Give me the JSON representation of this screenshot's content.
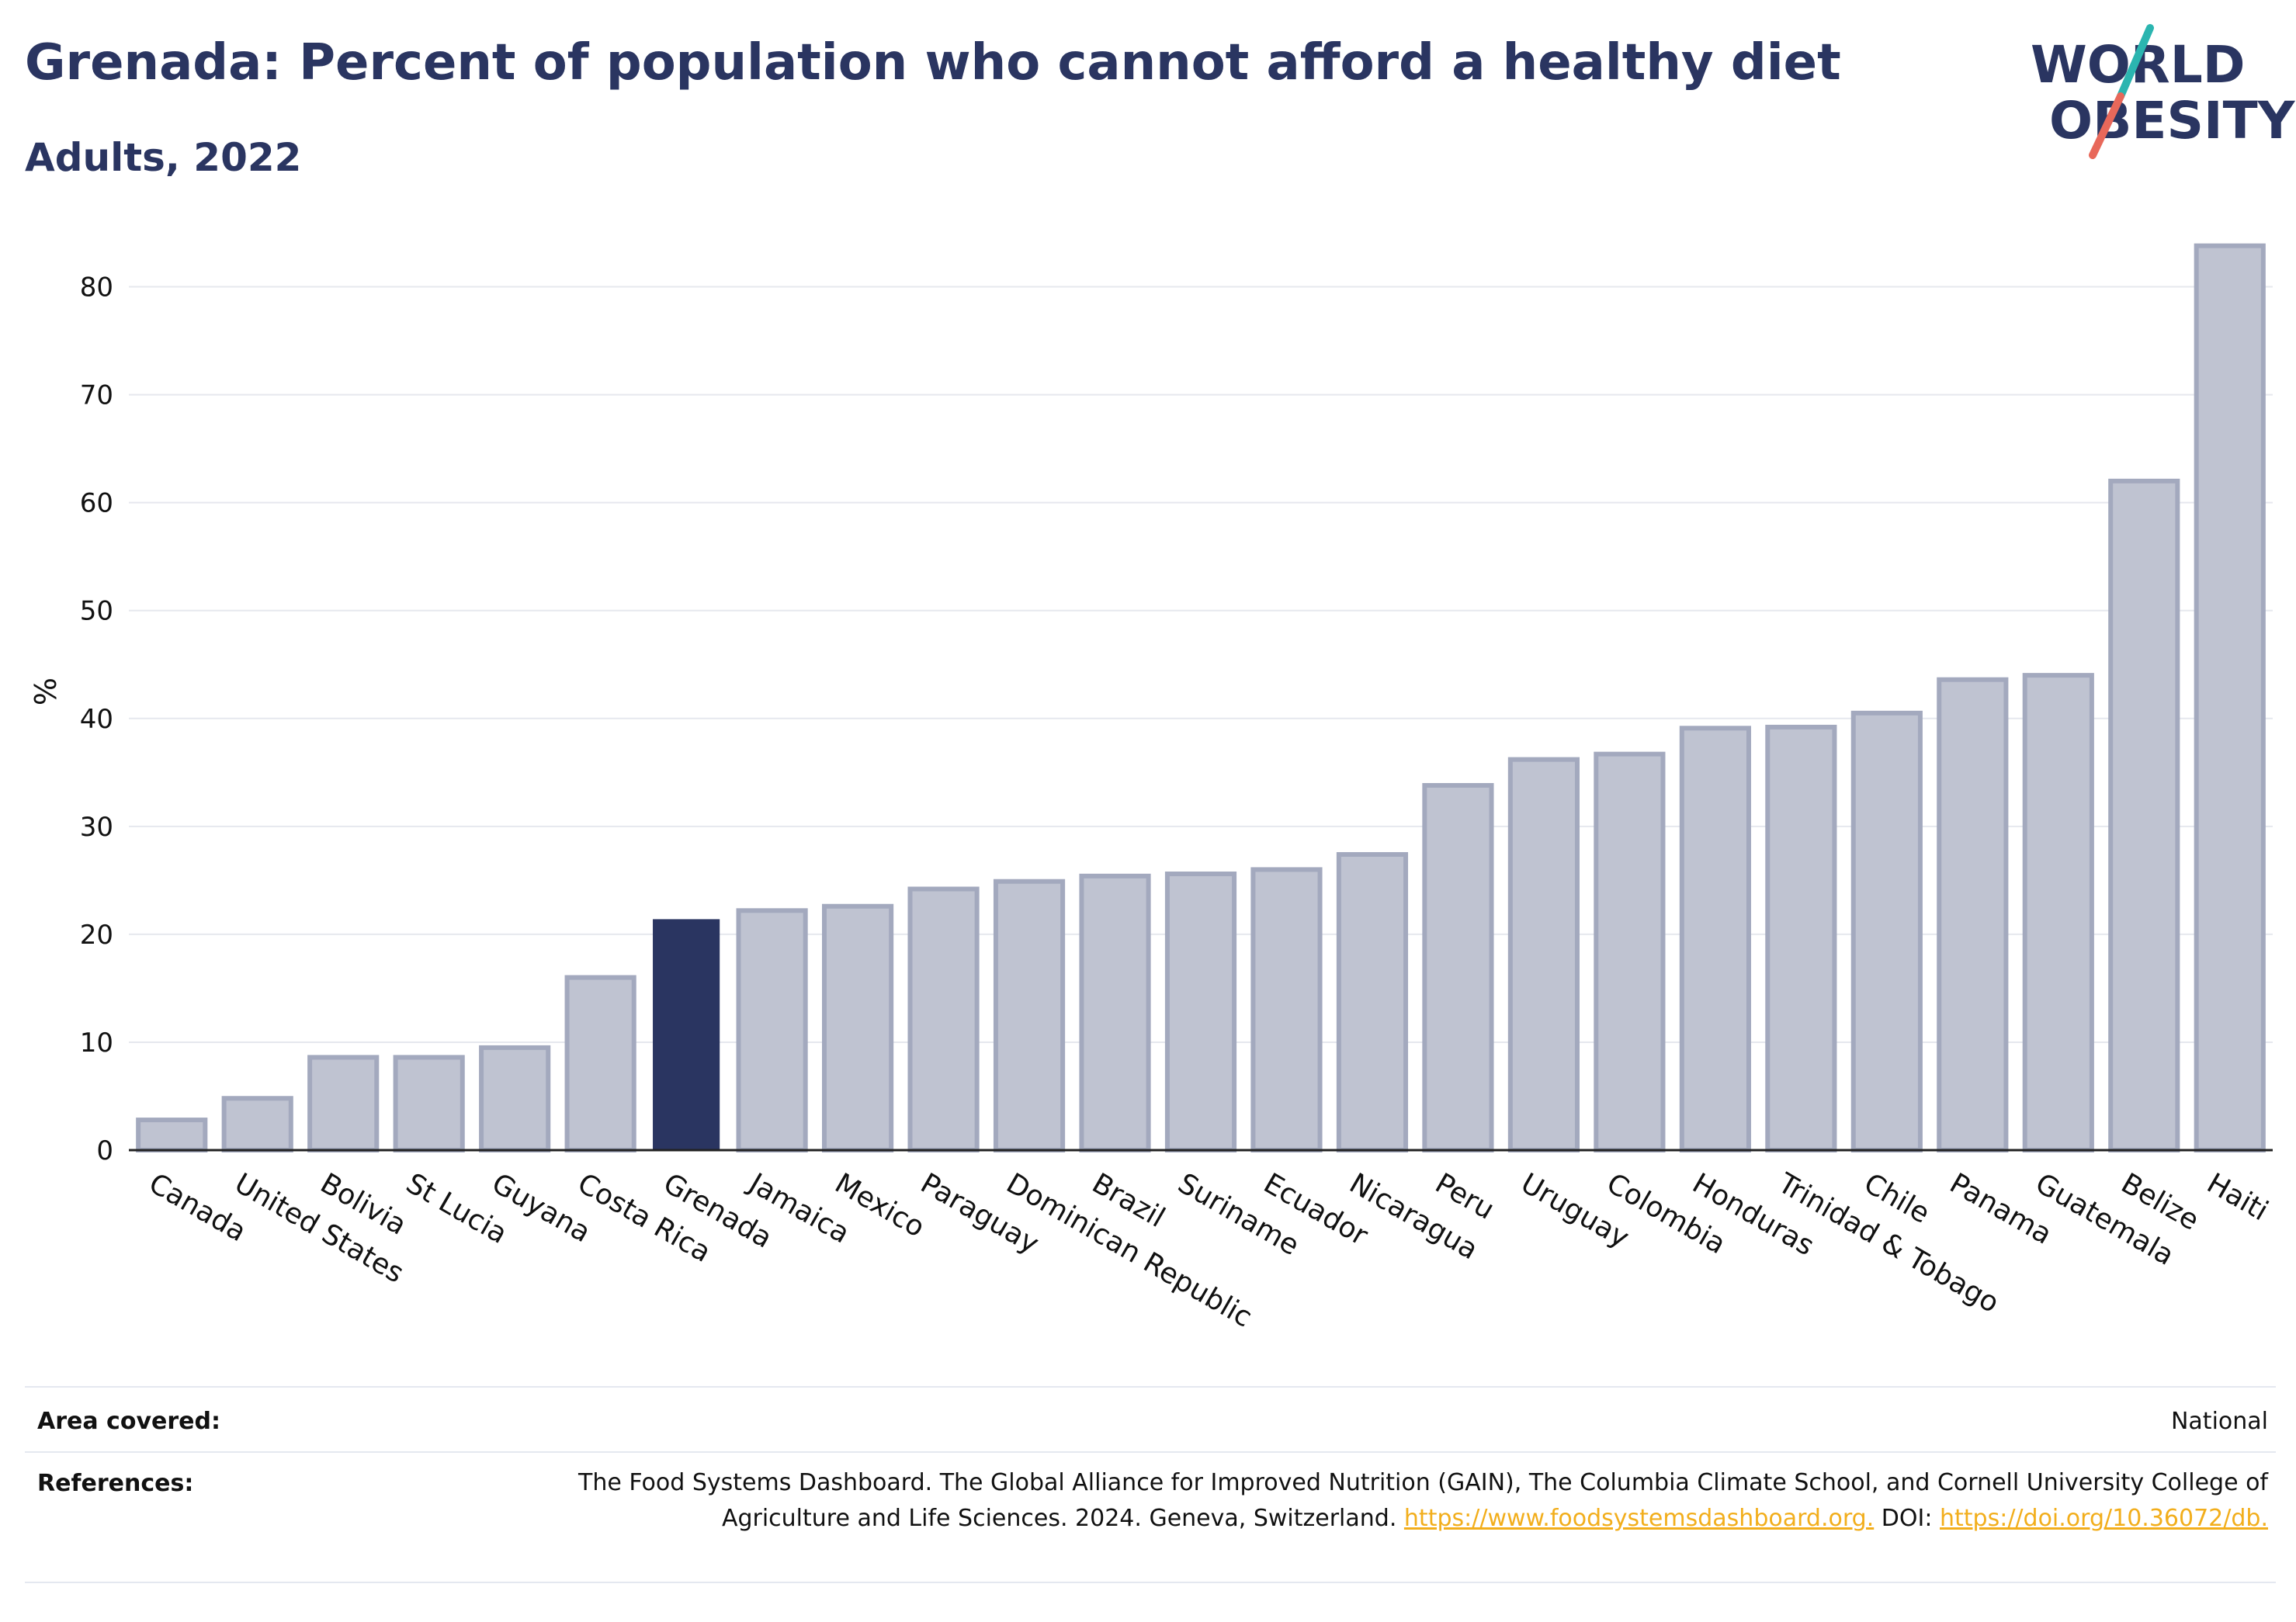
{
  "header": {
    "title": "Grenada: Percent of population who cannot afford a healthy diet",
    "subtitle": "Adults, 2022"
  },
  "logo": {
    "line1": "WORLD",
    "line2": "OBESITY",
    "colors": {
      "text": "#2a3561",
      "slash_top": "#2bb5b0",
      "slash_bottom": "#e8685a"
    }
  },
  "chart_data": {
    "type": "bar",
    "ylabel": "%",
    "ylim": [
      0,
      85
    ],
    "yticks": [
      0,
      10,
      20,
      30,
      40,
      50,
      60,
      70,
      80
    ],
    "grid": true,
    "highlight": "Grenada",
    "colors": {
      "bar": "#bfc3d1",
      "bar_edge": "#a3a9be",
      "highlight": "#2a3561"
    },
    "categories": [
      "Canada",
      "United States",
      "Bolivia",
      "St Lucia",
      "Guyana",
      "Costa Rica",
      "Grenada",
      "Jamaica",
      "Mexico",
      "Paraguay",
      "Dominican Republic",
      "Brazil",
      "Suriname",
      "Ecuador",
      "Nicaragua",
      "Peru",
      "Uruguay",
      "Colombia",
      "Honduras",
      "Trinidad & Tobago",
      "Chile",
      "Panama",
      "Guatemala",
      "Belize",
      "Haiti"
    ],
    "values": [
      2.8,
      4.8,
      8.6,
      8.6,
      9.5,
      16.0,
      21.4,
      22.2,
      22.6,
      24.2,
      24.9,
      25.4,
      25.6,
      26.0,
      27.4,
      33.8,
      36.2,
      36.7,
      39.1,
      39.2,
      40.5,
      43.6,
      44.0,
      62.0,
      83.8
    ]
  },
  "footer": {
    "area_label": "Area covered:",
    "area_value": "National",
    "references_label": "References:",
    "references_text": "The Food Systems Dashboard. The Global Alliance for Improved Nutrition (GAIN), The Columbia Climate School, and Cornell University College of Agriculture and Life Sciences. 2024. Geneva, Switzerland.",
    "references_link1": "https://www.foodsystemsdashboard.org.",
    "references_doi_label": "DOI:",
    "references_link2": "https://doi.org/10.36072/db."
  }
}
